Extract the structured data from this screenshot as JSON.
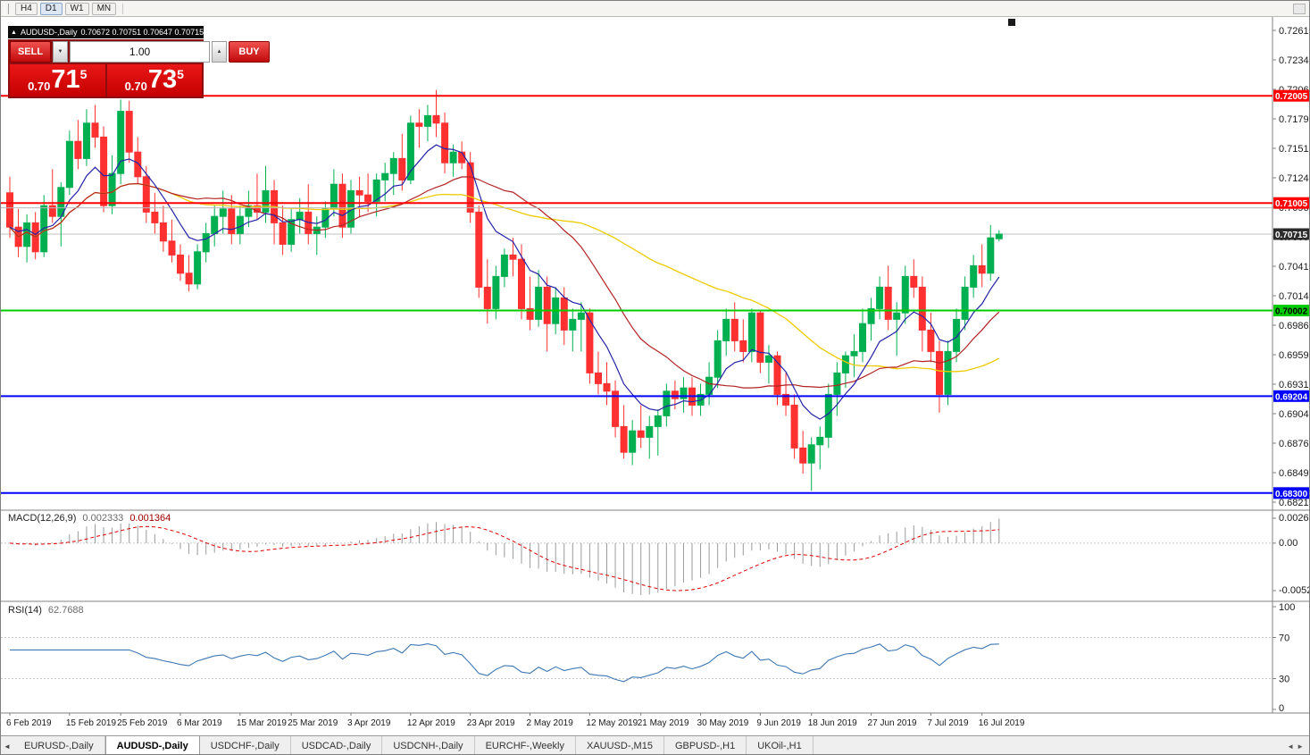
{
  "toolbar": {
    "timeframes": [
      {
        "label": "H4",
        "active": false
      },
      {
        "label": "D1",
        "active": true
      },
      {
        "label": "W1",
        "active": false
      },
      {
        "label": "MN",
        "active": false
      }
    ]
  },
  "icons": {
    "collapse": "▲",
    "spinner_up": "▲",
    "spinner_down": "▼",
    "tab_scroll_left": "◄",
    "tab_scroll_right": "►"
  },
  "chart": {
    "symbol_title": "AUDUSD-,Daily",
    "ohlc_text": "0.70672 0.70751 0.70647 0.70715",
    "one_click": {
      "sell_label": "SELL",
      "buy_label": "BUY",
      "volume": "1.00",
      "sell_price": {
        "prefix": "0.70",
        "big": "71",
        "sup": "5"
      },
      "buy_price": {
        "prefix": "0.70",
        "big": "73",
        "sup": "5"
      }
    },
    "price_axis_labels": [
      "0.72615",
      "0.72340",
      "0.72065",
      "0.71790",
      "0.71515",
      "0.71240",
      "0.70965",
      "0.70690",
      "0.70415",
      "0.70140",
      "0.69865",
      "0.69590",
      "0.69315",
      "0.69040",
      "0.68765",
      "0.68490",
      "0.68215"
    ],
    "hlines": [
      {
        "label": "0.72005",
        "price": 0.72005,
        "color": "#FF0000",
        "text": "#FFFFFF",
        "width": 2
      },
      {
        "label": "0.71005",
        "price": 0.71005,
        "color": "#FF0000",
        "text": "#FFFFFF",
        "width": 2
      },
      {
        "label": "",
        "price": 0.7096,
        "color": "#B8B8B8",
        "text": "",
        "width": 1
      },
      {
        "label": "0.70002",
        "price": 0.70002,
        "color": "#00CC00",
        "text": "#000000",
        "width": 2
      },
      {
        "label": "0.69204",
        "price": 0.69204,
        "color": "#0000FF",
        "text": "#FFFFFF",
        "width": 2
      },
      {
        "label": "0.68300",
        "price": 0.683,
        "color": "#0000FF",
        "text": "#FFFFFF",
        "width": 2
      }
    ],
    "current_price": {
      "label": "0.70715",
      "price": 0.70715,
      "line_color": "#C0C0C0",
      "box_color": "#2B2B2B",
      "text": "#FFFFFF"
    }
  },
  "macd": {
    "name": "MACD(12,26,9)",
    "value1": "0.002333",
    "value2": "0.001364",
    "axis_top": "0.002694",
    "axis_zero": "0.00",
    "axis_bottom": "-0.005242",
    "hist_color": "#9A9A9A",
    "signal_color": "#E00000"
  },
  "rsi": {
    "name": "RSI(14)",
    "value": "62.7688",
    "axis": [
      {
        "v": 100,
        "label": "100"
      },
      {
        "v": 70,
        "label": "70"
      },
      {
        "v": 30,
        "label": "30"
      },
      {
        "v": 0,
        "label": "0"
      }
    ],
    "levels": [
      70,
      30
    ],
    "line_color": "#3E78B4"
  },
  "tabs": [
    {
      "label": "EURUSD-,Daily",
      "active": false
    },
    {
      "label": "AUDUSD-,Daily",
      "active": true
    },
    {
      "label": "USDCHF-,Daily",
      "active": false
    },
    {
      "label": "USDCAD-,Daily",
      "active": false
    },
    {
      "label": "USDCNH-,Daily",
      "active": false
    },
    {
      "label": "EURCHF-,Weekly",
      "active": false
    },
    {
      "label": "XAUUSD-,M15",
      "active": false
    },
    {
      "label": "GBPUSD-,H1",
      "active": false
    },
    {
      "label": "UKOil-,H1",
      "active": false
    }
  ],
  "colors": {
    "bull": "#00B050",
    "bear": "#FF3030",
    "ma_fast": "#2323A8",
    "ma_mid": "#B22222",
    "ma_slow": "#EECB00",
    "background": "#FFFFFF",
    "panel_border": "#808080"
  },
  "chart_data": {
    "type": "candlestick",
    "symbol": "AUDUSD",
    "timeframe": "Daily",
    "ylim": [
      0.68215,
      0.72615
    ],
    "date_ticks": [
      {
        "i": 0,
        "label": "6 Feb 2019"
      },
      {
        "i": 7,
        "label": "15 Feb 2019"
      },
      {
        "i": 13,
        "label": "25 Feb 2019"
      },
      {
        "i": 20,
        "label": "6 Mar 2019"
      },
      {
        "i": 27,
        "label": "15 Mar 2019"
      },
      {
        "i": 33,
        "label": "25 Mar 2019"
      },
      {
        "i": 40,
        "label": "3 Apr 2019"
      },
      {
        "i": 47,
        "label": "12 Apr 2019"
      },
      {
        "i": 54,
        "label": "23 Apr 2019"
      },
      {
        "i": 61,
        "label": "2 May 2019"
      },
      {
        "i": 68,
        "label": "12 May 2019"
      },
      {
        "i": 74,
        "label": "21 May 2019"
      },
      {
        "i": 81,
        "label": "30 May 2019"
      },
      {
        "i": 88,
        "label": "9 J​un 2019"
      },
      {
        "i": 94,
        "label": "18 Jun 2019"
      },
      {
        "i": 101,
        "label": "27 Jun 2019"
      },
      {
        "i": 108,
        "label": "7 Jul 2019"
      },
      {
        "i": 114,
        "label": "16 Jul 2019"
      }
    ],
    "moving_averages": [
      {
        "period": 8,
        "method": "ema",
        "color_key": "ma_fast"
      },
      {
        "period": 20,
        "method": "sma",
        "color_key": "ma_mid"
      },
      {
        "period": 45,
        "method": "sma",
        "color_key": "ma_slow"
      }
    ],
    "ohlc": [
      [
        0.711,
        0.7125,
        0.7068,
        0.7078
      ],
      [
        0.7078,
        0.7095,
        0.705,
        0.706
      ],
      [
        0.706,
        0.709,
        0.7045,
        0.7082
      ],
      [
        0.7082,
        0.7092,
        0.7048,
        0.7055
      ],
      [
        0.7055,
        0.7108,
        0.705,
        0.7098
      ],
      [
        0.7098,
        0.7132,
        0.7082,
        0.7088
      ],
      [
        0.7088,
        0.712,
        0.706,
        0.7115
      ],
      [
        0.7115,
        0.7168,
        0.7108,
        0.7158
      ],
      [
        0.7158,
        0.7178,
        0.7132,
        0.7142
      ],
      [
        0.7142,
        0.7188,
        0.7135,
        0.7175
      ],
      [
        0.7175,
        0.7192,
        0.7152,
        0.7162
      ],
      [
        0.7162,
        0.7172,
        0.7092,
        0.7098
      ],
      [
        0.7098,
        0.7145,
        0.709,
        0.7128
      ],
      [
        0.7128,
        0.7197,
        0.7118,
        0.7186
      ],
      [
        0.7186,
        0.7196,
        0.7138,
        0.7148
      ],
      [
        0.7148,
        0.7162,
        0.7118,
        0.7125
      ],
      [
        0.7125,
        0.7135,
        0.7082,
        0.7092
      ],
      [
        0.7092,
        0.711,
        0.7072,
        0.7082
      ],
      [
        0.7082,
        0.7098,
        0.7055,
        0.7065
      ],
      [
        0.7065,
        0.7085,
        0.7045,
        0.7052
      ],
      [
        0.7052,
        0.7062,
        0.7028,
        0.7035
      ],
      [
        0.7035,
        0.7052,
        0.7018,
        0.7025
      ],
      [
        0.7025,
        0.7062,
        0.702,
        0.7055
      ],
      [
        0.7055,
        0.7082,
        0.7045,
        0.7072
      ],
      [
        0.7072,
        0.7098,
        0.706,
        0.7088
      ],
      [
        0.7088,
        0.7112,
        0.7072,
        0.7095
      ],
      [
        0.7095,
        0.7108,
        0.7062,
        0.7072
      ],
      [
        0.7072,
        0.7098,
        0.7062,
        0.7088
      ],
      [
        0.7088,
        0.7112,
        0.7078,
        0.7098
      ],
      [
        0.7098,
        0.7128,
        0.7085,
        0.7092
      ],
      [
        0.7092,
        0.7135,
        0.7082,
        0.7112
      ],
      [
        0.7112,
        0.7122,
        0.7062,
        0.7082
      ],
      [
        0.7082,
        0.7098,
        0.7052,
        0.7062
      ],
      [
        0.7062,
        0.7095,
        0.7055,
        0.7085
      ],
      [
        0.7085,
        0.7105,
        0.7072,
        0.7092
      ],
      [
        0.7092,
        0.7118,
        0.7062,
        0.7072
      ],
      [
        0.7072,
        0.7088,
        0.7052,
        0.7078
      ],
      [
        0.7078,
        0.7102,
        0.7068,
        0.7095
      ],
      [
        0.7095,
        0.7132,
        0.7088,
        0.7118
      ],
      [
        0.7118,
        0.7128,
        0.7068,
        0.7078
      ],
      [
        0.7078,
        0.7122,
        0.7072,
        0.7112
      ],
      [
        0.7112,
        0.7125,
        0.7088,
        0.7108
      ],
      [
        0.7108,
        0.7128,
        0.7092,
        0.7102
      ],
      [
        0.7102,
        0.7128,
        0.7088,
        0.7122
      ],
      [
        0.7122,
        0.7138,
        0.7102,
        0.7128
      ],
      [
        0.7128,
        0.7148,
        0.7108,
        0.7142
      ],
      [
        0.7142,
        0.7165,
        0.7112,
        0.7122
      ],
      [
        0.7122,
        0.7182,
        0.7118,
        0.7175
      ],
      [
        0.7175,
        0.7188,
        0.7152,
        0.7172
      ],
      [
        0.7172,
        0.7192,
        0.7158,
        0.7182
      ],
      [
        0.7182,
        0.7206,
        0.7162,
        0.7175
      ],
      [
        0.7175,
        0.7185,
        0.7128,
        0.7138
      ],
      [
        0.7138,
        0.7155,
        0.7125,
        0.7148
      ],
      [
        0.7148,
        0.7158,
        0.7132,
        0.7138
      ],
      [
        0.7138,
        0.7148,
        0.7082,
        0.7092
      ],
      [
        0.7092,
        0.7098,
        0.7012,
        0.7022
      ],
      [
        0.7022,
        0.7048,
        0.6988,
        0.7002
      ],
      [
        0.7002,
        0.7042,
        0.6992,
        0.7032
      ],
      [
        0.7032,
        0.7058,
        0.7022,
        0.7052
      ],
      [
        0.7052,
        0.7068,
        0.7032,
        0.7048
      ],
      [
        0.7048,
        0.7062,
        0.6992,
        0.7002
      ],
      [
        0.7002,
        0.7032,
        0.6982,
        0.6992
      ],
      [
        0.6992,
        0.7038,
        0.6985,
        0.7022
      ],
      [
        0.7022,
        0.7032,
        0.6962,
        0.6988
      ],
      [
        0.6988,
        0.7022,
        0.6978,
        0.7012
      ],
      [
        0.7012,
        0.7022,
        0.6968,
        0.6982
      ],
      [
        0.6982,
        0.7002,
        0.6962,
        0.6992
      ],
      [
        0.6992,
        0.7008,
        0.6962,
        0.6998
      ],
      [
        0.6998,
        0.7002,
        0.6932,
        0.6942
      ],
      [
        0.6942,
        0.6962,
        0.6922,
        0.6932
      ],
      [
        0.6932,
        0.6952,
        0.6912,
        0.6925
      ],
      [
        0.6925,
        0.6935,
        0.6882,
        0.6892
      ],
      [
        0.6892,
        0.6912,
        0.6862,
        0.6868
      ],
      [
        0.6868,
        0.6898,
        0.6856,
        0.6888
      ],
      [
        0.6888,
        0.6912,
        0.6872,
        0.6882
      ],
      [
        0.6882,
        0.6902,
        0.6862,
        0.6892
      ],
      [
        0.6892,
        0.6908,
        0.6865,
        0.6902
      ],
      [
        0.6902,
        0.6932,
        0.6892,
        0.6925
      ],
      [
        0.6925,
        0.6935,
        0.6908,
        0.6918
      ],
      [
        0.6918,
        0.6938,
        0.6905,
        0.6928
      ],
      [
        0.6928,
        0.6938,
        0.6902,
        0.6912
      ],
      [
        0.6912,
        0.6932,
        0.6902,
        0.6922
      ],
      [
        0.6922,
        0.6952,
        0.6912,
        0.6938
      ],
      [
        0.6938,
        0.6982,
        0.6928,
        0.6972
      ],
      [
        0.6972,
        0.7002,
        0.6958,
        0.6992
      ],
      [
        0.6992,
        0.7008,
        0.6962,
        0.6972
      ],
      [
        0.6972,
        0.6992,
        0.6952,
        0.6962
      ],
      [
        0.6962,
        0.7002,
        0.6952,
        0.6998
      ],
      [
        0.6998,
        0.7,
        0.6942,
        0.6952
      ],
      [
        0.6952,
        0.6968,
        0.6932,
        0.6958
      ],
      [
        0.6958,
        0.6962,
        0.6912,
        0.6922
      ],
      [
        0.6922,
        0.6942,
        0.6902,
        0.6912
      ],
      [
        0.6912,
        0.6922,
        0.6862,
        0.6872
      ],
      [
        0.6872,
        0.6888,
        0.6848,
        0.6858
      ],
      [
        0.6858,
        0.6882,
        0.6832,
        0.6875
      ],
      [
        0.6875,
        0.6892,
        0.6852,
        0.6882
      ],
      [
        0.6882,
        0.6932,
        0.6872,
        0.6922
      ],
      [
        0.6922,
        0.6952,
        0.6902,
        0.6942
      ],
      [
        0.6942,
        0.6962,
        0.6928,
        0.6958
      ],
      [
        0.6958,
        0.6978,
        0.6938,
        0.6962
      ],
      [
        0.6962,
        0.7002,
        0.6952,
        0.6988
      ],
      [
        0.6988,
        0.7012,
        0.6972,
        0.7002
      ],
      [
        0.7002,
        0.7032,
        0.6992,
        0.7022
      ],
      [
        0.7022,
        0.7042,
        0.6982,
        0.6992
      ],
      [
        0.6992,
        0.7008,
        0.6958,
        0.6998
      ],
      [
        0.6998,
        0.7042,
        0.6988,
        0.7032
      ],
      [
        0.7032,
        0.7048,
        0.7012,
        0.7022
      ],
      [
        0.7022,
        0.7032,
        0.6962,
        0.6982
      ],
      [
        0.6982,
        0.6998,
        0.6952,
        0.6962
      ],
      [
        0.6962,
        0.6972,
        0.6905,
        0.6922
      ],
      [
        0.6922,
        0.6972,
        0.6912,
        0.6962
      ],
      [
        0.6962,
        0.7002,
        0.6952,
        0.6992
      ],
      [
        0.6992,
        0.7032,
        0.6982,
        0.7022
      ],
      [
        0.7022,
        0.7052,
        0.7012,
        0.7042
      ],
      [
        0.7042,
        0.7062,
        0.7022,
        0.7035
      ],
      [
        0.7035,
        0.708,
        0.7028,
        0.7068
      ],
      [
        0.70672,
        0.70751,
        0.70647,
        0.70715
      ]
    ]
  }
}
